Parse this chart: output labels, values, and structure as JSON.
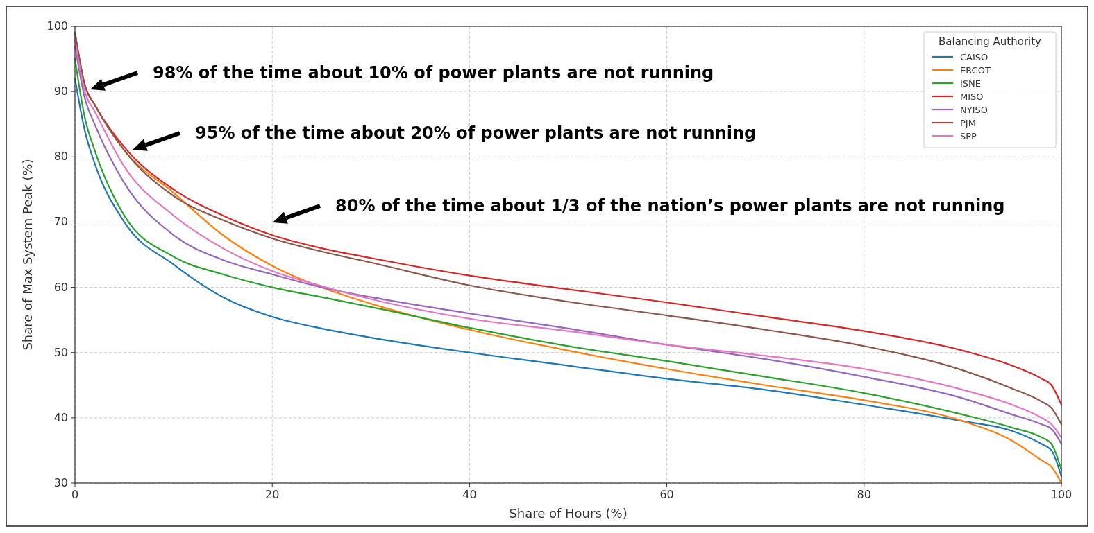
{
  "chart_data": {
    "type": "line",
    "xlabel": "Share of Hours (%)",
    "ylabel": "Share of Max System Peak (%)",
    "legend_title": "Balancing Authority",
    "x": [
      0,
      1,
      2,
      5,
      10,
      15,
      20,
      25,
      30,
      40,
      50,
      60,
      70,
      80,
      90,
      95,
      98,
      99,
      100
    ],
    "series": [
      {
        "name": "CAISO",
        "color": "#1f77b4",
        "values": [
          92,
          84,
          79,
          70,
          63.5,
          58.5,
          55.5,
          53.7,
          52.3,
          50,
          48,
          46,
          44.3,
          42,
          39.5,
          38,
          36,
          35,
          31
        ]
      },
      {
        "name": "ERCOT",
        "color": "#ff7f0e",
        "values": [
          99,
          91,
          88,
          81,
          74.5,
          68,
          63.3,
          60,
          57.5,
          53.5,
          50.3,
          47.5,
          45,
          42.7,
          39.5,
          36.5,
          33.5,
          32.5,
          30
        ]
      },
      {
        "name": "ISNE",
        "color": "#2ca02c",
        "values": [
          95,
          86,
          81,
          71,
          64.7,
          62,
          60,
          58.5,
          57,
          53.8,
          51,
          48.7,
          46.3,
          43.8,
          40.5,
          38.5,
          37,
          36,
          32
        ]
      },
      {
        "name": "MISO",
        "color": "#d62728",
        "values": [
          99,
          91,
          88,
          81.5,
          75,
          71,
          68,
          66,
          64.5,
          61.8,
          59.7,
          57.7,
          55.5,
          53.3,
          50.3,
          48,
          46,
          45,
          42
        ]
      },
      {
        "name": "NYISO",
        "color": "#9467bd",
        "values": [
          97,
          89,
          85,
          76,
          68,
          64.2,
          62,
          60,
          58.5,
          56,
          53.7,
          51.2,
          49,
          46.3,
          43,
          40.5,
          39,
          38.3,
          36
        ]
      },
      {
        "name": "PJM",
        "color": "#8c564b",
        "values": [
          99,
          91,
          88,
          81,
          74,
          70.3,
          67.5,
          65.5,
          63.8,
          60.3,
          57.8,
          55.7,
          53.5,
          51,
          47.3,
          44.5,
          42.5,
          41.5,
          39
        ]
      },
      {
        "name": "SPP",
        "color": "#e377c2",
        "values": [
          98,
          90,
          87,
          78.5,
          71,
          66,
          62.5,
          60.2,
          58.2,
          55.2,
          53.3,
          51.2,
          49.5,
          47.5,
          44.3,
          42,
          40,
          39,
          37
        ]
      }
    ],
    "xlim": [
      0,
      100
    ],
    "xticks": [
      0,
      20,
      40,
      60,
      80,
      100
    ],
    "ylim": [
      30,
      100
    ],
    "yticks": [
      30,
      40,
      50,
      60,
      70,
      80,
      90,
      100
    ],
    "grid": true,
    "legend": "top right",
    "annotations": [
      "98% of the time about 10% of power plants are not running",
      "95% of the time about 20% of power plants are not running",
      "80% of the time about 1/3 of the nation’s power plants are not running"
    ]
  }
}
